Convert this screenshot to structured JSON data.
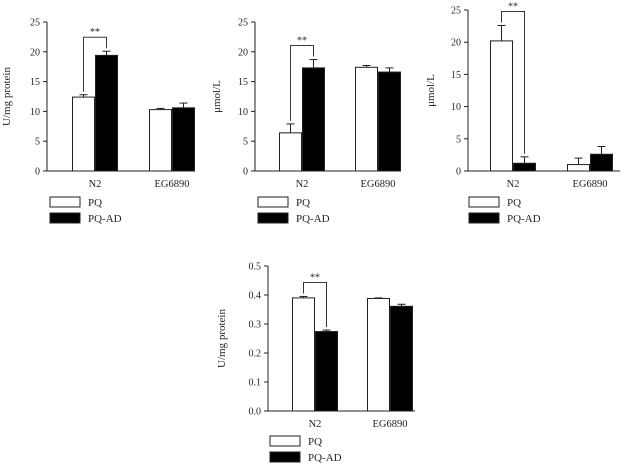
{
  "colors": {
    "PQ": "#ffffff",
    "PQ-AD": "#000000",
    "ink": "#231f20"
  },
  "chart_data": [
    {
      "type": "bar",
      "title": "",
      "xlabel": "",
      "ylabel": "U/mg protein",
      "ylim": [
        0,
        25
      ],
      "yticks": [
        0,
        5,
        10,
        15,
        20,
        25
      ],
      "categories": [
        "N2",
        "EG6890"
      ],
      "series": [
        {
          "name": "PQ",
          "values": [
            12.4,
            10.3
          ],
          "errors": [
            0.4,
            0.2
          ]
        },
        {
          "name": "PQ-AD",
          "values": [
            19.4,
            10.6
          ],
          "errors": [
            0.7,
            0.8
          ]
        }
      ],
      "significance": [
        {
          "category": "N2",
          "label": "**"
        }
      ],
      "legend": "bottom-left"
    },
    {
      "type": "bar",
      "title": "",
      "xlabel": "",
      "ylabel": "μmol/L",
      "ylim": [
        0,
        25
      ],
      "yticks": [
        0,
        5,
        10,
        15,
        20,
        25
      ],
      "categories": [
        "N2",
        "EG6890"
      ],
      "series": [
        {
          "name": "PQ",
          "values": [
            6.4,
            17.4
          ],
          "errors": [
            1.5,
            0.3
          ]
        },
        {
          "name": "PQ-AD",
          "values": [
            17.3,
            16.6
          ],
          "errors": [
            1.4,
            0.7
          ]
        }
      ],
      "significance": [
        {
          "category": "N2",
          "label": "**"
        }
      ],
      "legend": "bottom-left"
    },
    {
      "type": "bar",
      "title": "",
      "xlabel": "",
      "ylabel": "μmol/L",
      "ylim": [
        0,
        25
      ],
      "yticks": [
        0,
        5,
        10,
        15,
        20,
        25
      ],
      "categories": [
        "N2",
        "EG6890"
      ],
      "series": [
        {
          "name": "PQ",
          "values": [
            20.2,
            1.0
          ],
          "errors": [
            2.4,
            1.0
          ]
        },
        {
          "name": "PQ-AD",
          "values": [
            1.2,
            2.6
          ],
          "errors": [
            1.0,
            1.2
          ]
        }
      ],
      "significance": [
        {
          "category": "N2",
          "label": "**"
        }
      ],
      "legend": "bottom-left"
    },
    {
      "type": "bar",
      "title": "",
      "xlabel": "",
      "ylabel": "U/mg protein",
      "ylim": [
        0,
        0.5
      ],
      "yticks": [
        0.0,
        0.1,
        0.2,
        0.3,
        0.4,
        0.5
      ],
      "categories": [
        "N2",
        "EG6890"
      ],
      "series": [
        {
          "name": "PQ",
          "values": [
            0.39,
            0.388
          ],
          "errors": [
            0.005,
            0.002
          ]
        },
        {
          "name": "PQ-AD",
          "values": [
            0.274,
            0.361
          ],
          "errors": [
            0.005,
            0.007
          ]
        }
      ],
      "significance": [
        {
          "category": "N2",
          "label": "**"
        }
      ],
      "legend": "bottom-left"
    }
  ]
}
